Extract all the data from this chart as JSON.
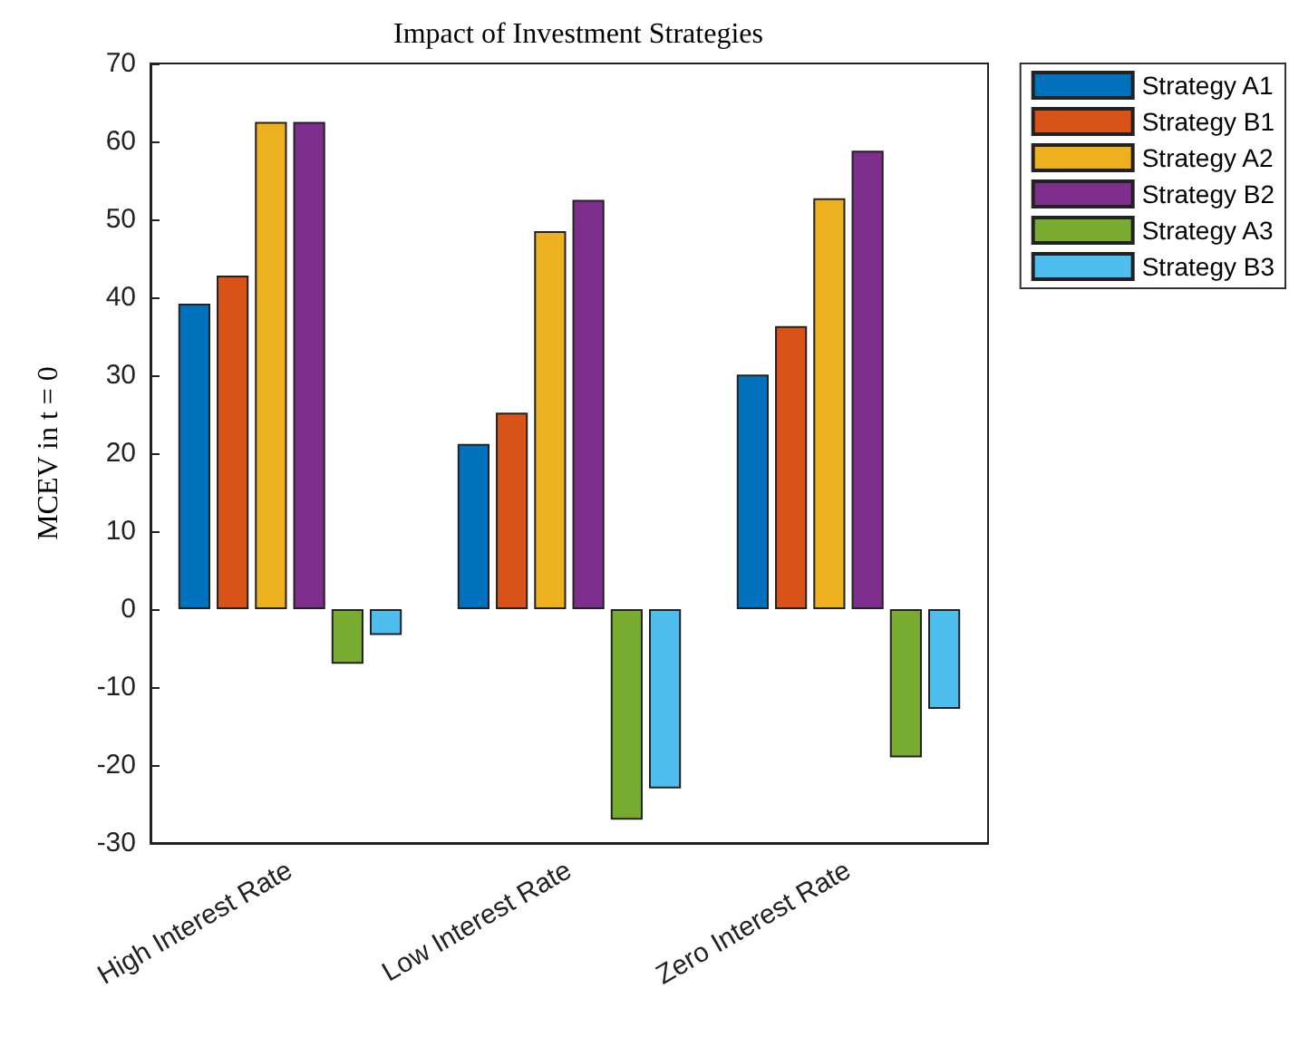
{
  "chart_data": {
    "type": "bar",
    "title": "Impact of Investment Strategies",
    "ylabel": "MCEV in t = 0",
    "categories": [
      "High Interest Rate",
      "Low Interest Rate",
      "Zero Interest Rate"
    ],
    "series": [
      {
        "name": "Strategy A1",
        "color": "#0072bd",
        "values": [
          39.2,
          21.2,
          30.1
        ]
      },
      {
        "name": "Strategy B1",
        "color": "#d95319",
        "values": [
          42.8,
          25.2,
          36.3
        ]
      },
      {
        "name": "Strategy A2",
        "color": "#edb120",
        "values": [
          62.5,
          48.5,
          52.7
        ]
      },
      {
        "name": "Strategy B2",
        "color": "#7e2f8e",
        "values": [
          62.5,
          52.5,
          58.8
        ]
      },
      {
        "name": "Strategy A3",
        "color": "#77ac30",
        "values": [
          -7,
          -27,
          -19
        ]
      },
      {
        "name": "Strategy B3",
        "color": "#4dbeee",
        "values": [
          -3.3,
          -23,
          -12.8
        ]
      }
    ],
    "ylim": [
      -30,
      70
    ],
    "yticks": [
      -30,
      -20,
      -10,
      0,
      10,
      20,
      30,
      40,
      50,
      60,
      70
    ],
    "grid": false,
    "legend": "top right"
  }
}
